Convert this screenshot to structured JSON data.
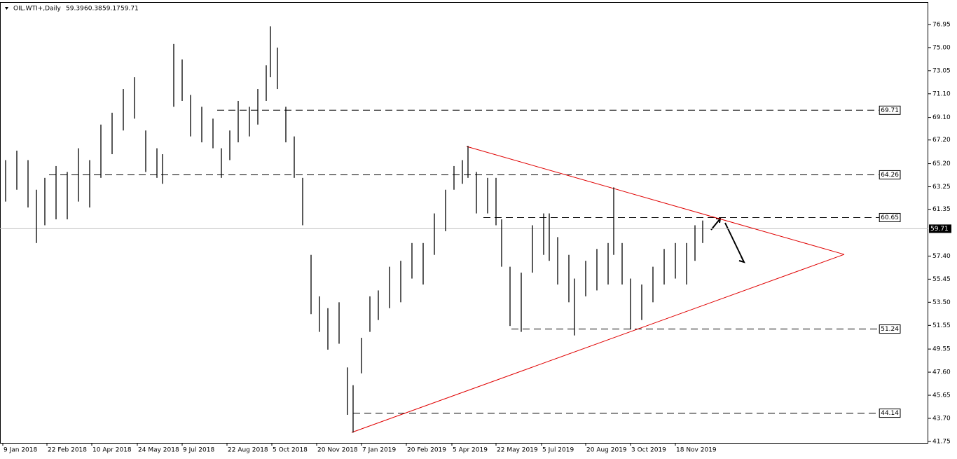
{
  "chart_data": {
    "type": "ohlc",
    "symbol": "OIL.WTI+,Daily",
    "ohlc": [
      59.39,
      60.38,
      59.17,
      59.71
    ],
    "color": "#000000",
    "x": [
      4,
      12,
      20,
      26,
      32,
      40,
      48,
      56,
      64,
      72,
      80,
      88,
      96,
      104,
      112,
      116,
      124,
      130,
      136,
      144,
      152,
      158,
      164,
      170,
      178,
      184,
      190,
      193,
      198,
      204,
      210,
      216,
      222,
      228,
      234,
      242,
      248,
      252,
      258,
      264,
      270,
      278,
      286,
      294,
      302,
      310,
      318,
      324,
      330,
      334,
      340,
      348,
      354,
      358,
      364,
      372,
      380,
      388,
      392,
      398,
      406,
      410,
      418,
      426,
      434,
      438,
      444,
      450,
      458,
      466,
      474,
      482,
      490,
      496,
      501.5
    ],
    "highs": [
      65.5,
      66.3,
      65.5,
      63.0,
      64.0,
      65.0,
      64.5,
      66.5,
      65.5,
      68.5,
      69.5,
      71.5,
      72.5,
      68.0,
      66.5,
      66.0,
      75.3,
      74.0,
      71.0,
      70.0,
      69.0,
      66.5,
      68.0,
      70.5,
      70.0,
      71.5,
      73.5,
      76.8,
      75.0,
      70.0,
      67.5,
      64.0,
      57.5,
      54.0,
      53.0,
      53.5,
      48.0,
      46.5,
      50.5,
      54.0,
      54.5,
      56.5,
      57.0,
      58.5,
      58.5,
      61.0,
      63.0,
      65.0,
      65.5,
      66.7,
      64.5,
      64.0,
      64.0,
      60.5,
      56.5,
      56.0,
      60.0,
      61.0,
      61.0,
      59.0,
      57.5,
      55.5,
      57.0,
      58.0,
      58.5,
      63.2,
      58.5,
      55.5,
      55.0,
      56.5,
      58.0,
      58.5,
      58.5,
      60.0,
      60.4
    ],
    "lows": [
      62.0,
      63.0,
      61.5,
      58.5,
      60.0,
      60.5,
      60.5,
      62.0,
      61.5,
      64.0,
      66.0,
      68.0,
      69.0,
      64.5,
      64.0,
      63.5,
      70.0,
      70.5,
      67.5,
      67.0,
      66.5,
      64.0,
      65.5,
      67.0,
      67.5,
      68.5,
      70.5,
      72.5,
      71.5,
      67.0,
      64.0,
      60.0,
      52.5,
      51.0,
      49.5,
      50.0,
      44.0,
      42.5,
      47.5,
      51.0,
      52.0,
      53.0,
      53.5,
      55.5,
      55.0,
      57.5,
      59.5,
      63.0,
      63.5,
      64.0,
      61.0,
      61.0,
      60.0,
      56.5,
      51.5,
      51.0,
      56.0,
      57.5,
      57.0,
      55.0,
      53.5,
      50.7,
      54.0,
      54.5,
      55.0,
      57.5,
      55.0,
      51.2,
      52.0,
      53.5,
      55.0,
      55.5,
      55.0,
      57.0,
      58.5
    ],
    "xlim": [
      0,
      662.5
    ],
    "ylim": [
      41.63,
      78.72
    ],
    "xticks": [
      {
        "value": 2,
        "label": "9 Jan 2018"
      },
      {
        "value": 33.5,
        "label": "22 Feb 2018"
      },
      {
        "value": 65.5,
        "label": "10 Apr 2018"
      },
      {
        "value": 98,
        "label": "24 May 2018"
      },
      {
        "value": 130,
        "label": "9 Jul 2018"
      },
      {
        "value": 162,
        "label": "22 Aug 2018"
      },
      {
        "value": 194,
        "label": "5 Oct 2018"
      },
      {
        "value": 226,
        "label": "20 Nov 2018"
      },
      {
        "value": 258,
        "label": "7 Jan 2019"
      },
      {
        "value": 290,
        "label": "20 Feb 2019"
      },
      {
        "value": 322.5,
        "label": "5 Apr 2019"
      },
      {
        "value": 354,
        "label": "22 May 2019"
      },
      {
        "value": 386.5,
        "label": "5 Jul 2019"
      },
      {
        "value": 418,
        "label": "20 Aug 2019"
      },
      {
        "value": 450,
        "label": "3 Oct 2019"
      },
      {
        "value": 482,
        "label": "18 Nov 2019"
      }
    ],
    "yticks": [
      76.95,
      {
        "value": 75,
        "label": "75.00"
      },
      73.05,
      {
        "value": 71.1,
        "label": "71.10"
      },
      {
        "value": 69.1,
        "label": "69.10"
      },
      {
        "value": 67.2,
        "label": "67.20"
      },
      {
        "value": 65.2,
        "label": "65.20"
      },
      63.25,
      61.35,
      {
        "value": 57.4,
        "label": "57.40"
      },
      55.45,
      {
        "value": 53.5,
        "label": "53.50"
      },
      51.55,
      49.55,
      {
        "value": 47.6,
        "label": "47.60"
      },
      45.65,
      {
        "value": 43.7,
        "label": "43.70"
      },
      41.75
    ],
    "levels": [
      {
        "value": 69.71,
        "start": 155
      },
      {
        "value": 64.26,
        "start": 35
      },
      {
        "value": 60.65,
        "start": 345
      },
      {
        "value": 51.24,
        "start": 365
      },
      {
        "value": 44.14,
        "start": 252
      }
    ],
    "current_price": 59.71,
    "trendline_color": "#e00000",
    "trendlines": [
      [
        [
          333,
          66.65
        ],
        [
          602.5,
          57.54
        ]
      ],
      [
        [
          251,
          42.51
        ],
        [
          602.5,
          57.54
        ]
      ]
    ]
  }
}
